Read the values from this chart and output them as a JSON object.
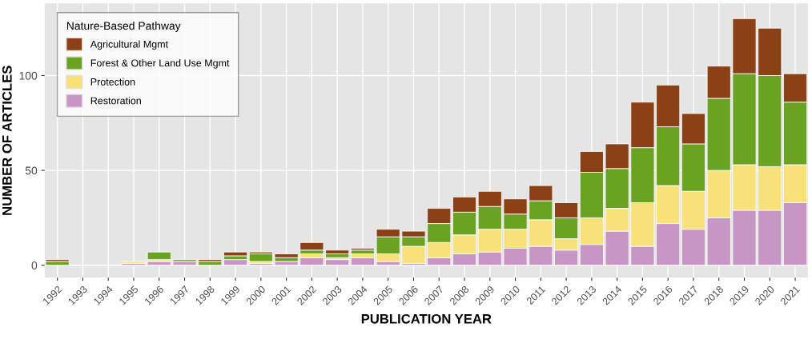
{
  "chart_data": {
    "type": "bar",
    "stacked": true,
    "xlabel": "PUBLICATION YEAR",
    "ylabel": "NUMBER OF ARTICLES",
    "legend_title": "Nature-Based Pathway",
    "categories": [
      "1992",
      "1993",
      "1994",
      "1995",
      "1996",
      "1997",
      "1998",
      "1999",
      "2000",
      "2001",
      "2002",
      "2003",
      "2004",
      "2005",
      "2006",
      "2007",
      "2008",
      "2009",
      "2010",
      "2011",
      "2012",
      "2013",
      "2014",
      "2015",
      "2016",
      "2017",
      "2018",
      "2019",
      "2020",
      "2021"
    ],
    "series": [
      {
        "name": "Restoration",
        "color": "#c796c4",
        "values": [
          0,
          0,
          0,
          1,
          2,
          2,
          0,
          3,
          1,
          2,
          4,
          3,
          4,
          2,
          1,
          4,
          6,
          7,
          9,
          10,
          8,
          11,
          18,
          10,
          22,
          19,
          25,
          29,
          29,
          33
        ]
      },
      {
        "name": "Protection",
        "color": "#f9e17a",
        "values": [
          0,
          0,
          0,
          1,
          1,
          0,
          0,
          0,
          1,
          0,
          2,
          1,
          2,
          4,
          9,
          8,
          10,
          12,
          10,
          14,
          6,
          14,
          12,
          23,
          20,
          20,
          25,
          24,
          23,
          20
        ]
      },
      {
        "name": "Forest & Other Land Use Mgmt",
        "color": "#6aa321",
        "values": [
          2,
          0,
          0,
          0,
          4,
          1,
          2,
          2,
          4,
          2,
          2,
          2,
          2,
          9,
          5,
          10,
          12,
          12,
          8,
          10,
          11,
          24,
          21,
          29,
          31,
          25,
          38,
          48,
          48,
          33
        ]
      },
      {
        "name": "Agricultural Mgmt",
        "color": "#8b4015",
        "values": [
          1,
          0,
          0,
          0,
          0,
          0,
          1,
          2,
          1,
          2,
          4,
          2,
          1,
          4,
          3,
          8,
          8,
          8,
          8,
          8,
          8,
          11,
          13,
          24,
          22,
          16,
          17,
          29,
          25,
          15
        ]
      }
    ],
    "ylim": [
      -6.5,
      138
    ],
    "yticks": [
      0,
      50,
      100
    ],
    "grid": true,
    "legend": "top left"
  }
}
